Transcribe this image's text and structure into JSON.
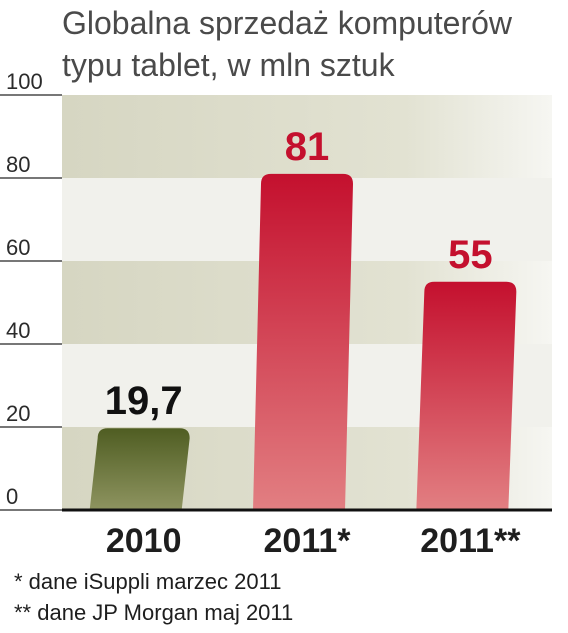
{
  "chart_data": {
    "type": "bar",
    "title_lines": [
      "Globalna sprzedaż komputerów",
      "typu tablet, w mln sztuk"
    ],
    "categories": [
      "2010",
      "2011*",
      "2011**"
    ],
    "values": [
      19.7,
      81,
      55
    ],
    "value_labels": [
      "19,7",
      "81",
      "55"
    ],
    "yticks": [
      0,
      20,
      40,
      60,
      80,
      100
    ],
    "ylim": [
      0,
      100
    ],
    "grid": "alternating horizontal bands",
    "colors": {
      "bar_2010_top": "#4f5d22",
      "bar_2010_bottom": "#8e9460",
      "bar_2011_top": "#c4102e",
      "bar_2011_bottom": "#e27f82",
      "value_2010": "#111111",
      "value_2011": "#c4102e",
      "band_light": "#f1f1ec",
      "band_dark": "#d6d6c2"
    }
  },
  "footnotes": [
    "* dane iSuppli marzec 2011",
    "** dane JP Morgan maj 2011"
  ]
}
